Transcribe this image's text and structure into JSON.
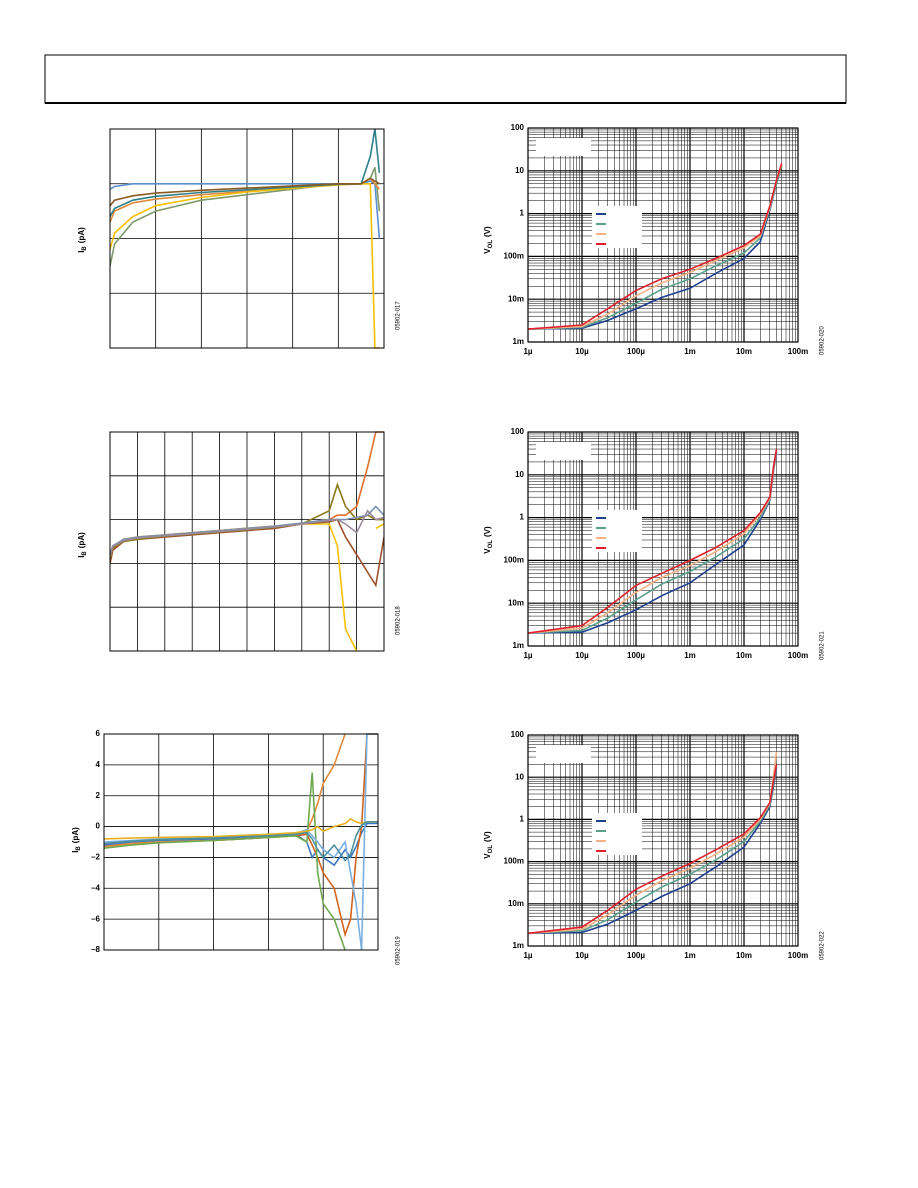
{
  "chart_data": [
    {
      "type": "line",
      "figure_code": "05902-017",
      "ylabel_main": "I",
      "ylabel_sub": "B",
      "ylabel_unit": "(pA)",
      "xlim": [
        0,
        6
      ],
      "ylim": [
        0,
        4
      ],
      "grid": true,
      "x": [
        0,
        0.1,
        0.5,
        1,
        2,
        3,
        4,
        5,
        5.5,
        5.7,
        5.8,
        5.9
      ],
      "series": [
        {
          "color": "#5b8fd0",
          "values": [
            2.9,
            2.95,
            3.0,
            3.0,
            3.0,
            3.0,
            3.0,
            3.0,
            3.0,
            3.05,
            3.0,
            2.0
          ]
        },
        {
          "color": "#7f9a6a",
          "values": [
            1.5,
            1.9,
            2.3,
            2.5,
            2.7,
            2.8,
            2.9,
            3.0,
            3.0,
            3.1,
            3.3,
            2.5
          ]
        },
        {
          "color": "#e08a3c",
          "values": [
            2.3,
            2.5,
            2.65,
            2.72,
            2.8,
            2.86,
            2.92,
            2.98,
            3.0,
            3.1,
            3.0,
            2.9
          ]
        },
        {
          "color": "#f5c000",
          "values": [
            1.8,
            2.1,
            2.4,
            2.6,
            2.75,
            2.85,
            2.92,
            2.98,
            3.0,
            3.0,
            0,
            0
          ]
        },
        {
          "color": "#2e7f8a",
          "values": [
            2.4,
            2.55,
            2.7,
            2.77,
            2.84,
            2.89,
            2.94,
            2.99,
            3.0,
            3.5,
            4.0,
            3.2
          ]
        },
        {
          "color": "#8a5a20",
          "values": [
            2.6,
            2.7,
            2.78,
            2.83,
            2.88,
            2.92,
            2.96,
            3.0,
            3.0,
            3.1,
            3.05,
            3.0
          ]
        }
      ]
    },
    {
      "type": "line",
      "figure_code": "05902-018",
      "ylabel_main": "I",
      "ylabel_sub": "B",
      "ylabel_unit": "(pA)",
      "xlim": [
        0,
        10
      ],
      "ylim": [
        0,
        5
      ],
      "grid": true,
      "x": [
        0,
        0.1,
        0.5,
        1,
        2,
        4,
        6,
        7,
        8,
        8.3,
        8.6,
        9,
        9.4,
        9.7,
        10
      ],
      "series": [
        {
          "color": "#e07030",
          "values": [
            2.0,
            2.3,
            2.55,
            2.6,
            2.65,
            2.75,
            2.85,
            2.9,
            3.0,
            3.1,
            3.1,
            3.3,
            4.2,
            5.0,
            5.0
          ]
        },
        {
          "color": "#f5c000",
          "values": [
            2.1,
            2.35,
            2.55,
            2.6,
            2.65,
            2.75,
            2.85,
            2.9,
            2.9,
            2.4,
            0.5,
            0,
            null,
            2.8,
            2.9
          ]
        },
        {
          "color": "#a0522d",
          "values": [
            2.0,
            2.3,
            2.5,
            2.55,
            2.6,
            2.7,
            2.8,
            2.9,
            2.95,
            3.0,
            2.6,
            2.2,
            1.8,
            1.5,
            2.6
          ]
        },
        {
          "color": "#8b7a1a",
          "values": [
            2.1,
            2.35,
            2.5,
            2.55,
            2.62,
            2.72,
            2.82,
            2.9,
            3.2,
            3.8,
            3.3,
            3.0,
            3.1,
            3.0,
            3.0
          ]
        },
        {
          "color": "#7a90b0",
          "values": [
            2.2,
            2.4,
            2.55,
            2.6,
            2.65,
            2.75,
            2.85,
            2.92,
            3.0,
            3.0,
            3.0,
            3.05,
            3.1,
            3.3,
            3.1
          ]
        },
        {
          "color": "#9a8a9a",
          "values": [
            2.15,
            2.38,
            2.52,
            2.58,
            2.63,
            2.73,
            2.83,
            2.9,
            2.98,
            3.0,
            2.9,
            2.7,
            3.2,
            3.0,
            3.05
          ]
        }
      ]
    },
    {
      "type": "line",
      "figure_code": "05902-019",
      "ylabel_main": "I",
      "ylabel_sub": "B",
      "ylabel_unit": "(pA)",
      "xlim": [
        0,
        5
      ],
      "ylim": [
        -8,
        6
      ],
      "grid": true,
      "yticks": [
        6,
        4,
        2,
        0,
        {
          "value": -2,
          "label": "–2"
        },
        {
          "value": -4,
          "label": "–4"
        },
        {
          "value": -6,
          "label": "–6"
        },
        {
          "value": -8,
          "label": "–8"
        }
      ],
      "x": [
        0,
        0.5,
        1,
        2,
        3,
        3.5,
        3.7,
        3.8,
        3.9,
        4.0,
        4.2,
        4.4,
        4.5,
        4.6,
        4.7,
        4.8,
        5
      ],
      "series": [
        {
          "color": "#3d78c0",
          "values": [
            -1.2,
            -1.0,
            -0.9,
            -0.8,
            -0.6,
            -0.5,
            -1,
            -2,
            -1.5,
            -2,
            -2.5,
            -1.5,
            -2,
            -1.3,
            -0.4,
            0.2,
            0.2
          ]
        },
        {
          "color": "#d0651c",
          "values": [
            -1.3,
            -1.1,
            -1.0,
            -0.9,
            -0.7,
            -0.6,
            -0.5,
            -1.2,
            -2,
            -3,
            -4,
            -7,
            -6,
            -2,
            0,
            6,
            6
          ]
        },
        {
          "color": "#e08a3c",
          "values": [
            -1.3,
            -1.1,
            -1.0,
            -0.9,
            -0.7,
            -0.5,
            -0.3,
            0.5,
            1.5,
            2.8,
            4,
            6,
            null,
            null,
            null,
            null,
            null
          ]
        },
        {
          "color": "#70a850",
          "values": [
            -1.4,
            -1.2,
            -1.05,
            -0.9,
            -0.7,
            -0.6,
            -1,
            3.5,
            -3,
            -5,
            -6,
            -8,
            null,
            null,
            null,
            null,
            null
          ]
        },
        {
          "color": "#7ab0e0",
          "values": [
            -1,
            -0.9,
            -0.8,
            -0.7,
            -0.55,
            -0.45,
            -0.2,
            -0.6,
            -1,
            -1.5,
            -2,
            -1,
            -3,
            -5,
            -8,
            6,
            6
          ]
        },
        {
          "color": "#e8b020",
          "values": [
            -0.8,
            -0.75,
            -0.7,
            -0.65,
            -0.5,
            -0.4,
            -0.3,
            -0.2,
            0,
            -0.3,
            0,
            0.2,
            0.5,
            0.3,
            0.2,
            0.3,
            0.3
          ]
        },
        {
          "color": "#4a90a0",
          "values": [
            -1.1,
            -0.95,
            -0.85,
            -0.75,
            -0.6,
            -0.5,
            -0.4,
            -0.8,
            -1.5,
            -2,
            -1.2,
            -2.2,
            -1.8,
            -0.6,
            0.1,
            0.3,
            0.3
          ]
        }
      ]
    },
    {
      "type": "line",
      "figure_code": "05902-020",
      "ylabel_main": "V",
      "ylabel_sub": "OL",
      "ylabel_unit": "(V)",
      "xlog": true,
      "ylog": true,
      "xlim": [
        1e-06,
        0.1
      ],
      "ylim": [
        0.001,
        100
      ],
      "grid": true,
      "xticks": [
        {
          "value": 1e-06,
          "label": "1µ"
        },
        {
          "value": 1e-05,
          "label": "10µ"
        },
        {
          "value": 0.0001,
          "label": "100µ"
        },
        {
          "value": 0.001,
          "label": "1m"
        },
        {
          "value": 0.01,
          "label": "10m"
        },
        {
          "value": 0.1,
          "label": "100m"
        }
      ],
      "yticks": [
        {
          "value": 0.001,
          "label": "1m"
        },
        {
          "value": 0.01,
          "label": "10m"
        },
        {
          "value": 0.1,
          "label": "100m"
        },
        1,
        10,
        100
      ],
      "x": [
        1e-06,
        1e-05,
        3e-05,
        0.0001,
        0.0003,
        0.001,
        0.003,
        0.01,
        0.02,
        0.03,
        0.04,
        0.05
      ],
      "series": [
        {
          "color": "#1f3f8f",
          "values": [
            0.002,
            0.0021,
            0.0032,
            0.006,
            0.011,
            0.018,
            0.04,
            0.09,
            0.22,
            1.2,
            5,
            13
          ]
        },
        {
          "color": "#5aa08c",
          "values": [
            0.002,
            0.0022,
            0.0037,
            0.008,
            0.017,
            0.03,
            0.06,
            0.12,
            0.27,
            1.3,
            5,
            13
          ]
        },
        {
          "color": "#f4b183",
          "values": [
            0.002,
            0.0023,
            0.0045,
            0.012,
            0.024,
            0.042,
            0.08,
            0.16,
            0.3,
            1.4,
            6,
            14
          ]
        },
        {
          "color": "#e0202c",
          "values": [
            0.002,
            0.0025,
            0.006,
            0.016,
            0.03,
            0.05,
            0.09,
            0.18,
            0.33,
            1.5,
            6,
            15
          ]
        }
      ]
    },
    {
      "type": "line",
      "figure_code": "05902-021",
      "ylabel_main": "V",
      "ylabel_sub": "OL",
      "ylabel_unit": "(V)",
      "xlog": true,
      "ylog": true,
      "xlim": [
        1e-06,
        0.1
      ],
      "ylim": [
        0.001,
        100
      ],
      "grid": true,
      "xticks": [
        {
          "value": 1e-06,
          "label": "1µ"
        },
        {
          "value": 1e-05,
          "label": "10µ"
        },
        {
          "value": 0.0001,
          "label": "100µ"
        },
        {
          "value": 0.001,
          "label": "1m"
        },
        {
          "value": 0.01,
          "label": "10m"
        },
        {
          "value": 0.1,
          "label": "100m"
        }
      ],
      "yticks": [
        {
          "value": 0.001,
          "label": "1m"
        },
        {
          "value": 0.01,
          "label": "10m"
        },
        {
          "value": 0.1,
          "label": "100m"
        },
        1,
        10,
        100
      ],
      "x": [
        1e-06,
        1e-05,
        3e-05,
        0.0001,
        0.0003,
        0.001,
        0.003,
        0.01,
        0.02,
        0.03,
        0.035,
        0.04
      ],
      "series": [
        {
          "color": "#1f3f8f",
          "values": [
            0.002,
            0.0021,
            0.0035,
            0.007,
            0.015,
            0.03,
            0.08,
            0.23,
            0.9,
            2.5,
            12,
            35
          ]
        },
        {
          "color": "#5aa08c",
          "values": [
            0.002,
            0.0023,
            0.0045,
            0.012,
            0.028,
            0.055,
            0.12,
            0.32,
            1.0,
            2.6,
            13,
            38
          ]
        },
        {
          "color": "#f4b183",
          "values": [
            0.002,
            0.0026,
            0.006,
            0.018,
            0.04,
            0.075,
            0.16,
            0.42,
            1.2,
            2.8,
            14,
            40
          ]
        },
        {
          "color": "#e0202c",
          "values": [
            0.002,
            0.003,
            0.008,
            0.026,
            0.05,
            0.1,
            0.2,
            0.5,
            1.3,
            3,
            15,
            40
          ]
        }
      ]
    },
    {
      "type": "line",
      "figure_code": "05902-022",
      "ylabel_main": "V",
      "ylabel_sub": "OL",
      "ylabel_unit": "(V)",
      "xlog": true,
      "ylog": true,
      "xlim": [
        1e-06,
        0.1
      ],
      "ylim": [
        0.001,
        100
      ],
      "grid": true,
      "xticks": [
        {
          "value": 1e-06,
          "label": "1µ"
        },
        {
          "value": 1e-05,
          "label": "10µ"
        },
        {
          "value": 0.0001,
          "label": "100µ"
        },
        {
          "value": 0.001,
          "label": "1m"
        },
        {
          "value": 0.01,
          "label": "10m"
        },
        {
          "value": 0.1,
          "label": "100m"
        }
      ],
      "yticks": [
        {
          "value": 0.001,
          "label": "1m"
        },
        {
          "value": 0.01,
          "label": "10m"
        },
        {
          "value": 0.1,
          "label": "100m"
        },
        1,
        10,
        100
      ],
      "x": [
        1e-06,
        1e-05,
        3e-05,
        0.0001,
        0.0003,
        0.001,
        0.003,
        0.01,
        0.02,
        0.03,
        0.035,
        0.04
      ],
      "series": [
        {
          "color": "#1f3f8f",
          "values": [
            0.002,
            0.0021,
            0.0033,
            0.007,
            0.015,
            0.03,
            0.075,
            0.22,
            0.8,
            2,
            6,
            17
          ]
        },
        {
          "color": "#5aa08c",
          "values": [
            0.002,
            0.0023,
            0.0042,
            0.011,
            0.025,
            0.05,
            0.11,
            0.3,
            0.9,
            2.2,
            7,
            18
          ]
        },
        {
          "color": "#f4b183",
          "values": [
            0.002,
            0.0025,
            0.0055,
            0.016,
            0.035,
            0.07,
            0.15,
            0.38,
            1,
            2.4,
            10,
            40
          ]
        },
        {
          "color": "#e0202c",
          "values": [
            0.002,
            0.0028,
            0.007,
            0.022,
            0.045,
            0.09,
            0.19,
            0.45,
            1.1,
            2.5,
            8,
            20
          ]
        }
      ]
    }
  ]
}
